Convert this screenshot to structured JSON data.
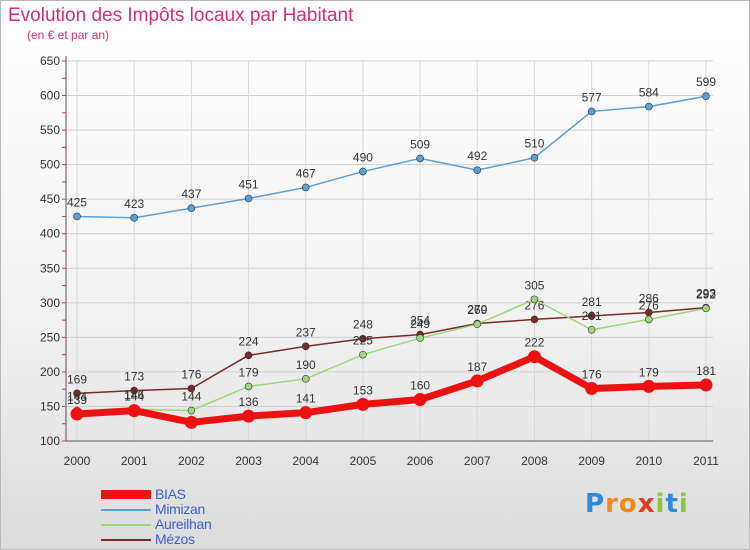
{
  "title": "Evolution des Impôts locaux par Habitant",
  "subtitle": "(en € et par an)",
  "logo": {
    "letters": [
      "P",
      "r",
      "o",
      "x",
      "i",
      "t",
      "i"
    ],
    "colors": [
      "#2b8be0",
      "#f08a1c",
      "#f08a1c",
      "#e23a1c",
      "#8cc63e",
      "#2b8be0",
      "#8cc63e"
    ]
  },
  "chart_data": {
    "type": "line",
    "x": [
      "2000",
      "2001",
      "2002",
      "2003",
      "2004",
      "2005",
      "2006",
      "2007",
      "2008",
      "2009",
      "2010",
      "2011"
    ],
    "y_ticks": [
      100,
      150,
      200,
      250,
      300,
      350,
      400,
      450,
      500,
      550,
      600,
      650
    ],
    "ylim": [
      100,
      650
    ],
    "grid": true,
    "legend_position": "bottom-left",
    "series": [
      {
        "name": "Mimizan",
        "color": "#5b9fd6",
        "values": [
          425,
          423,
          437,
          451,
          467,
          490,
          509,
          492,
          510,
          577,
          584,
          599
        ],
        "labels": [
          "425",
          "423",
          "437",
          "451",
          "467",
          "490",
          "509",
          "492",
          "510",
          "577",
          "584",
          "599"
        ]
      },
      {
        "name": "Mézos",
        "color": "#7a2a2a",
        "values": [
          169,
          173,
          176,
          224,
          237,
          248,
          254,
          270,
          276,
          281,
          286,
          293
        ],
        "labels": [
          "169",
          "173",
          "176",
          "224",
          "237",
          "248",
          "254",
          "270",
          "276",
          "281",
          "286",
          "293"
        ]
      },
      {
        "name": "Aureilhan",
        "color": "#9ed67c",
        "values": [
          144,
          146,
          144,
          179,
          190,
          225,
          249,
          269,
          305,
          261,
          276,
          292
        ],
        "labels": [
          "144",
          "146",
          "144",
          "179",
          "190",
          "225",
          "249",
          "269",
          "305",
          "261",
          "276",
          "292"
        ]
      },
      {
        "name": "BIAS",
        "color": "#ee1111",
        "values": [
          139,
          144,
          127,
          136,
          141,
          153,
          160,
          187,
          222,
          176,
          179,
          181
        ],
        "labels": [
          "139",
          "144",
          "",
          "136",
          "141",
          "153",
          "160",
          "187",
          "222",
          "176",
          "179",
          "181"
        ]
      }
    ],
    "legend": [
      {
        "name": "BIAS",
        "color": "#ee1111",
        "thick": true
      },
      {
        "name": "Mimizan",
        "color": "#5b9fd6",
        "thick": false
      },
      {
        "name": "Aureilhan",
        "color": "#9ed67c",
        "thick": false
      },
      {
        "name": "Mézos",
        "color": "#7a2a2a",
        "thick": false
      }
    ]
  }
}
